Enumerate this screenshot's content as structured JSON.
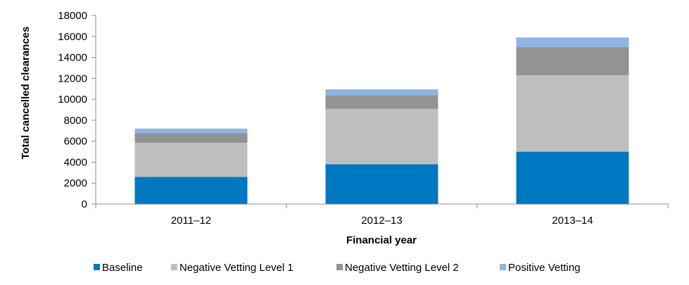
{
  "chart_data": {
    "type": "bar",
    "stacked": true,
    "title": "",
    "xlabel": "Financial year",
    "ylabel": "Total cancelled clearances",
    "categories": [
      "2011–12",
      "2012–13",
      "2013–14"
    ],
    "series": [
      {
        "name": "Baseline",
        "color": "#0078c1",
        "values": [
          2600,
          3800,
          5000
        ]
      },
      {
        "name": "Negative Vetting Level 1",
        "color": "#bfbfbf",
        "values": [
          3250,
          5300,
          7300
        ]
      },
      {
        "name": "Negative Vetting Level 2",
        "color": "#939393",
        "values": [
          900,
          1300,
          2700
        ]
      },
      {
        "name": "Positive Vetting",
        "color": "#8db4e2",
        "values": [
          450,
          550,
          900
        ]
      }
    ],
    "ylim": [
      0,
      18000
    ],
    "yticks": [
      "0",
      "2000",
      "4000",
      "6000",
      "8000",
      "10000",
      "12000",
      "14000",
      "16000",
      "18000"
    ],
    "grid": false,
    "legend_position": "bottom"
  }
}
